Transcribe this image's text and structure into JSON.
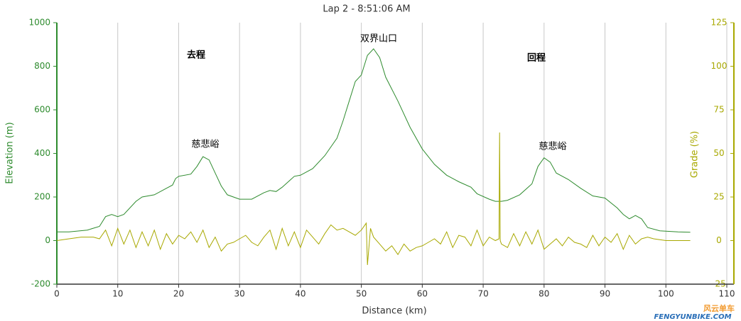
{
  "chart_data": {
    "type": "line",
    "title": "Lap 2 - 8:51:06 AM",
    "xlabel": "Distance (km)",
    "ylabel": "Elevation (m)",
    "y2label": "Grade (%)",
    "xlim": [
      0,
      110
    ],
    "xticks": [
      0,
      10,
      20,
      30,
      40,
      50,
      60,
      70,
      80,
      90,
      100,
      110
    ],
    "ylim": [
      -200,
      1000
    ],
    "yticks": [
      -200,
      0,
      200,
      400,
      600,
      800,
      1000
    ],
    "y2lim": [
      -25,
      125
    ],
    "y2ticks": [
      -25,
      0,
      25,
      50,
      75,
      100,
      125
    ],
    "grid": true,
    "annotations": [
      "去程",
      "双界山口",
      "回程",
      "慈悲峪",
      "慈悲峪"
    ],
    "watermark": [
      "风云单车",
      "FENGYUNBIKE.COM"
    ],
    "series": [
      {
        "name": "Elevation",
        "color": "#2e8b2e",
        "x": [
          0,
          2,
          5,
          7,
          8,
          9,
          10,
          11,
          13,
          14,
          16,
          18,
          19,
          19.5,
          20,
          22,
          23,
          24,
          25,
          26,
          27,
          28,
          30,
          32,
          34,
          35,
          36,
          37,
          39,
          40,
          42,
          44,
          46,
          47,
          48,
          49,
          50,
          51,
          52,
          53,
          54,
          56,
          58,
          60,
          62,
          64,
          66,
          68,
          69,
          71,
          72,
          73,
          74,
          76,
          78,
          79,
          80,
          81,
          82,
          84,
          86,
          88,
          90,
          92,
          93,
          94,
          95,
          96,
          97,
          99,
          102,
          104
        ],
        "values": [
          40,
          40,
          48,
          65,
          110,
          120,
          110,
          120,
          180,
          200,
          210,
          240,
          255,
          285,
          295,
          305,
          340,
          385,
          370,
          310,
          250,
          210,
          190,
          190,
          220,
          230,
          225,
          245,
          295,
          300,
          330,
          390,
          470,
          550,
          640,
          730,
          760,
          850,
          880,
          840,
          750,
          640,
          520,
          420,
          350,
          300,
          270,
          245,
          215,
          190,
          180,
          180,
          185,
          210,
          260,
          340,
          380,
          360,
          310,
          280,
          240,
          205,
          195,
          150,
          120,
          100,
          115,
          100,
          60,
          45,
          40,
          38
        ]
      },
      {
        "name": "Grade",
        "color": "#a8a800",
        "axis": "y2",
        "x": [
          0,
          2,
          4,
          6,
          7,
          8,
          9,
          10,
          11,
          12,
          13,
          14,
          15,
          16,
          17,
          18,
          19,
          20,
          21,
          22,
          23,
          24,
          25,
          26,
          27,
          28,
          29,
          30,
          31,
          32,
          33,
          34,
          35,
          36,
          37,
          38,
          39,
          40,
          41,
          42,
          43,
          44,
          45,
          46,
          47,
          48,
          49,
          50,
          50.8,
          51,
          51.5,
          52,
          53,
          54,
          55,
          56,
          57,
          58,
          59,
          60,
          61,
          62,
          63,
          64,
          65,
          66,
          67,
          68,
          69,
          70,
          71,
          72,
          72.6,
          72.7,
          72.8,
          73,
          74,
          75,
          76,
          77,
          78,
          79,
          80,
          81,
          82,
          83,
          84,
          85,
          86,
          87,
          88,
          89,
          90,
          91,
          92,
          93,
          94,
          95,
          96,
          97,
          98,
          100,
          102,
          104
        ],
        "values": [
          0,
          1,
          2,
          2,
          1,
          6,
          -3,
          7,
          -2,
          6,
          -4,
          5,
          -3,
          6,
          -5,
          4,
          -2,
          3,
          1,
          5,
          -1,
          6,
          -4,
          2,
          -6,
          -2,
          -1,
          1,
          3,
          -1,
          -3,
          2,
          6,
          -5,
          7,
          -3,
          5,
          -4,
          6,
          2,
          -2,
          4,
          9,
          6,
          7,
          5,
          3,
          6,
          10,
          -14,
          7,
          2,
          -2,
          -6,
          -3,
          -8,
          -2,
          -6,
          -4,
          -3,
          -1,
          1,
          -2,
          5,
          -4,
          3,
          2,
          -3,
          6,
          -3,
          2,
          0,
          1,
          62,
          0,
          -2,
          -4,
          4,
          -3,
          5,
          -2,
          6,
          -5,
          -2,
          1,
          -3,
          2,
          -1,
          -2,
          -4,
          3,
          -3,
          2,
          -1,
          4,
          -5,
          3,
          -2,
          1,
          2,
          1,
          0,
          0,
          0
        ]
      }
    ]
  }
}
